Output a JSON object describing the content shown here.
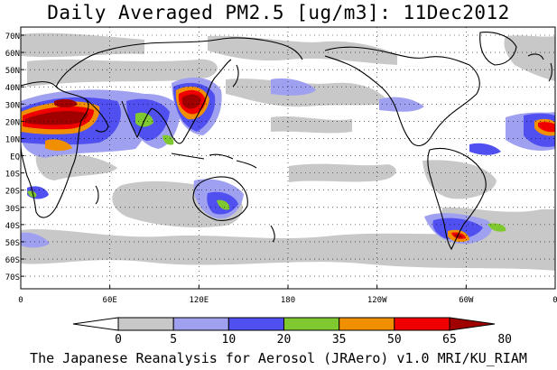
{
  "title": "Daily Averaged PM2.5 [ug/m3]: 11Dec2012",
  "footer": "The Japanese Reanalysis for Aerosol (JRAero) v1.0 MRI/KU_RIAM",
  "map": {
    "lat_labels": [
      "70N",
      "60N",
      "50N",
      "40N",
      "30N",
      "20N",
      "10N",
      "EQ",
      "10S",
      "20S",
      "30S",
      "40S",
      "50S",
      "60S",
      "70S"
    ],
    "lon_labels": [
      "0",
      "60E",
      "120E",
      "180",
      "120W",
      "60W",
      "0"
    ]
  },
  "colorbar": {
    "ticks": [
      "0",
      "5",
      "10",
      "20",
      "35",
      "50",
      "65",
      "80"
    ],
    "colors": [
      "#ffffff",
      "#c8c8c8",
      "#a0a0f0",
      "#5050f0",
      "#80c830",
      "#f09000",
      "#f00000",
      "#a00000"
    ]
  }
}
